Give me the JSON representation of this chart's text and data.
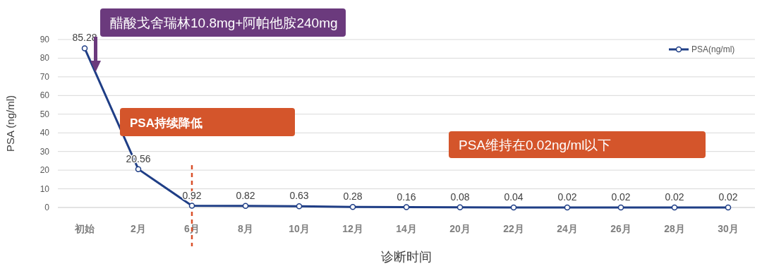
{
  "chart_data": {
    "type": "line",
    "xlabel": "诊断时间",
    "ylabel": "PSA (ng/ml)",
    "categories": [
      "初始",
      "2月",
      "6月",
      "8月",
      "10月",
      "12月",
      "14月",
      "20月",
      "22月",
      "24月",
      "26月",
      "28月",
      "30月"
    ],
    "series": [
      {
        "name": "PSA(ng/ml)",
        "color": "#1f3e86",
        "values": [
          85.28,
          20.56,
          0.92,
          0.82,
          0.63,
          0.28,
          0.16,
          0.08,
          0.04,
          0.02,
          0.02,
          0.02,
          0.02
        ]
      }
    ],
    "ylim": [
      0,
      90
    ],
    "yticks": [
      0,
      10,
      20,
      30,
      40,
      50,
      60,
      70,
      80,
      90
    ],
    "grid": "y",
    "legend": "top right",
    "marker": "circle",
    "line_style": "solid",
    "data_labels": true,
    "ref_lines": [
      {
        "axis": "x",
        "value": "6月",
        "color": "#d9502a",
        "line_style": "dashed"
      }
    ],
    "annotations": [
      "醋酸戈舍瑞林10.8mg+阿帕他胺240mg",
      "PSA持续降低",
      "PSA维持在0.02ng/ml以下"
    ]
  }
}
